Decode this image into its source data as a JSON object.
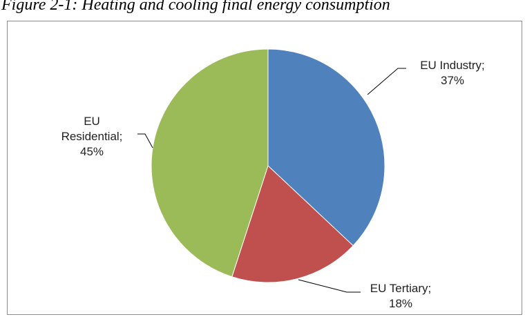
{
  "caption": "Figure 2-1: Heating and cooling final energy consumption",
  "chart_data": {
    "type": "pie",
    "title": "",
    "slices": [
      {
        "label": "EU Industry;",
        "value": 37,
        "percent": "37%",
        "color": "#4f81bd"
      },
      {
        "label": "EU Tertiary;",
        "value": 18,
        "percent": "18%",
        "color": "#c0504d"
      },
      {
        "label": "EU Residential;",
        "value": 45,
        "percent": "45%",
        "color": "#9bbb59"
      }
    ],
    "start_angle": "12 o'clock",
    "direction": "clockwise",
    "legend": "none",
    "data_labels": "outside with leader lines"
  }
}
